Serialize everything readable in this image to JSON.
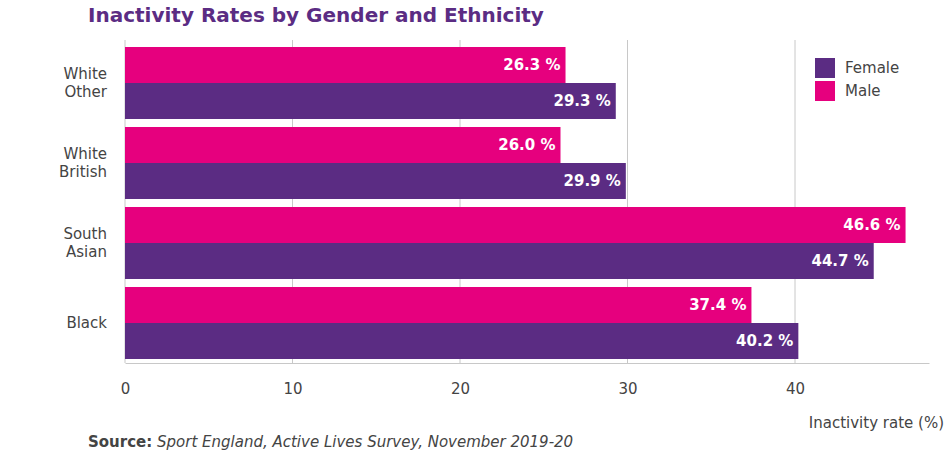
{
  "chart_data": {
    "type": "bar",
    "orientation": "horizontal",
    "title": "Inactivity Rates by Gender and Ethnicity",
    "xlabel": "Inactivity rate (%)",
    "annotations": [
      "Source:",
      "Sport England, Active Lives Survey, November 2019-20"
    ],
    "categories": [
      "White Other",
      "White British",
      "South Asian",
      "Black"
    ],
    "series": [
      {
        "name": "Female",
        "color": "#5b2c83",
        "values": [
          29.3,
          29.9,
          44.7,
          40.2
        ],
        "value_labels": [
          "29.3 %",
          "29.9 %",
          "44.7 %",
          "40.2 %"
        ]
      },
      {
        "name": "Male",
        "color": "#e6007e",
        "values": [
          26.3,
          26.0,
          46.6,
          37.4
        ],
        "value_labels": [
          "26.3 %",
          "26.0 %",
          "46.6 %",
          "37.4 %"
        ]
      }
    ],
    "xlim": [
      0,
      48
    ],
    "xticks": [
      0,
      10,
      20,
      30,
      40
    ],
    "grid": true,
    "legend": "top-right",
    "data_labels": true
  }
}
